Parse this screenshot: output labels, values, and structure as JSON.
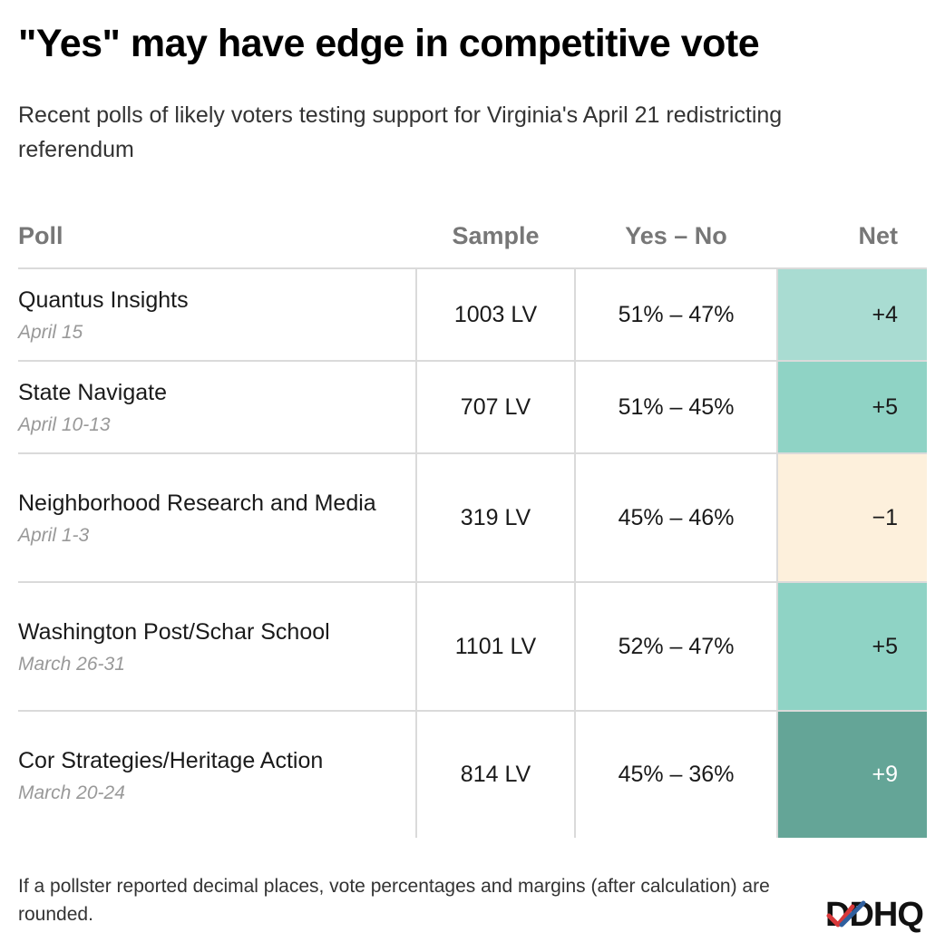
{
  "chart_data": {
    "type": "table",
    "title": "\"Yes\" may have edge in competitive vote",
    "subtitle": "Recent polls of likely voters testing support for Virginia's April 21 redistricting referendum",
    "columns": [
      "Poll",
      "Sample",
      "Yes – No",
      "Net"
    ],
    "rows": [
      {
        "pollster": "Quantus Insights",
        "date": "April 15",
        "sample": "1003 LV",
        "yes_no": "51% – 47%",
        "net": "+4",
        "net_value": 4
      },
      {
        "pollster": "State Navigate",
        "date": "April 10-13",
        "sample": "707 LV",
        "yes_no": "51% – 45%",
        "net": "+5",
        "net_value": 5
      },
      {
        "pollster": "Neighborhood Research and Media",
        "date": "April 1-3",
        "sample": "319 LV",
        "yes_no": "45% – 46%",
        "net": "−1",
        "net_value": -1
      },
      {
        "pollster": "Washington Post/Schar School",
        "date": "March 26-31",
        "sample": "1101 LV",
        "yes_no": "52% – 47%",
        "net": "+5",
        "net_value": 5
      },
      {
        "pollster": "Cor Strategies/Heritage Action",
        "date": "March 20-24",
        "sample": "814 LV",
        "yes_no": "45% – 36%",
        "net": "+9",
        "net_value": 9
      }
    ],
    "footnote": "If a pollster reported decimal places, vote percentages and margins (after calculation) are rounded.",
    "colors": {
      "net_plus_4": "#a9dcd2",
      "net_plus_5": "#8fd3c5",
      "net_minus_1": "#fdf0dc",
      "net_plus_9": "#64a597"
    }
  },
  "brand": {
    "logo_text": "DDHQ",
    "logo_icon": "checkmark-logo-icon"
  }
}
